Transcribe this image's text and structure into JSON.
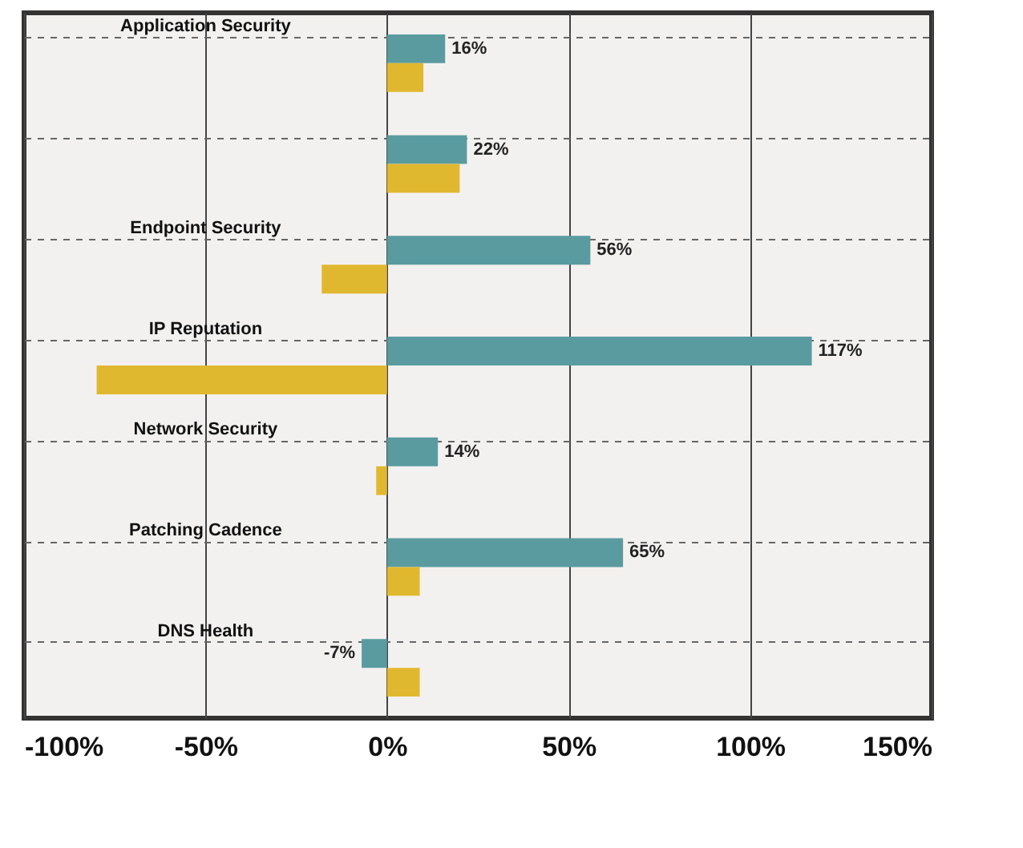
{
  "chart_data": {
    "type": "bar",
    "orientation": "horizontal",
    "categories": [
      "Application Security",
      null,
      "Endpoint Security",
      "IP Reputation",
      "Network Security",
      "Patching Cadence",
      "DNS Health"
    ],
    "series": [
      {
        "color": "#5a9ba0",
        "values": [
          16,
          22,
          56,
          117,
          14,
          65,
          -7
        ],
        "value_labels": [
          "16%",
          "22%",
          "56%",
          "117%",
          "14%",
          "65%",
          "-7%"
        ]
      },
      {
        "color": "#e0b830",
        "values": [
          10,
          20,
          -18,
          -80,
          -3,
          9,
          9
        ]
      }
    ],
    "xlim": [
      -100,
      150
    ],
    "xticks": [
      {
        "value": -100,
        "label": "-100%"
      },
      {
        "value": -50,
        "label": "-50%"
      },
      {
        "value": 0,
        "label": "0%"
      },
      {
        "value": 50,
        "label": "50%"
      },
      {
        "value": 100,
        "label": "100%"
      },
      {
        "value": 150,
        "label": "150%"
      }
    ],
    "grid": true,
    "legend": false
  }
}
